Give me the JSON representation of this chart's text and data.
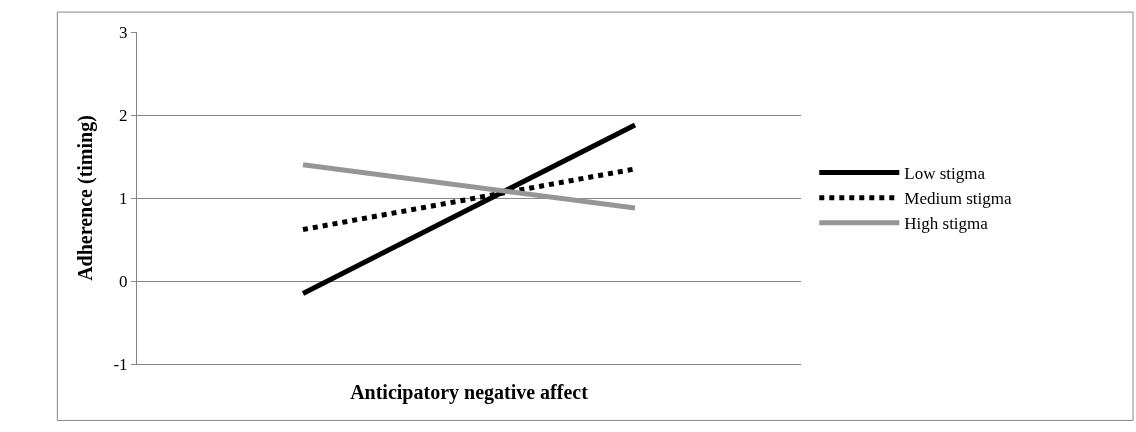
{
  "chart_data": {
    "type": "line",
    "xlabel": "Anticipatory negative affect",
    "ylabel": "Adherence (timing)",
    "categories": [
      null,
      null
    ],
    "series": [
      {
        "name": "Low stigma",
        "color": "#000000",
        "values": [
          -0.15,
          1.88
        ],
        "line_style": "solid"
      },
      {
        "name": "Medium stigma",
        "color": "#000000",
        "values": [
          0.62,
          1.35
        ],
        "line_style": "dotted"
      },
      {
        "name": "High stigma",
        "color": "#969696",
        "values": [
          1.4,
          0.88
        ],
        "line_style": "solid"
      }
    ],
    "ylim": [
      -1,
      3
    ],
    "yticks": [
      -1,
      0,
      1,
      2,
      3
    ],
    "grid": "y",
    "legend": "right",
    "tick_labels": "y",
    "marker": "none"
  }
}
